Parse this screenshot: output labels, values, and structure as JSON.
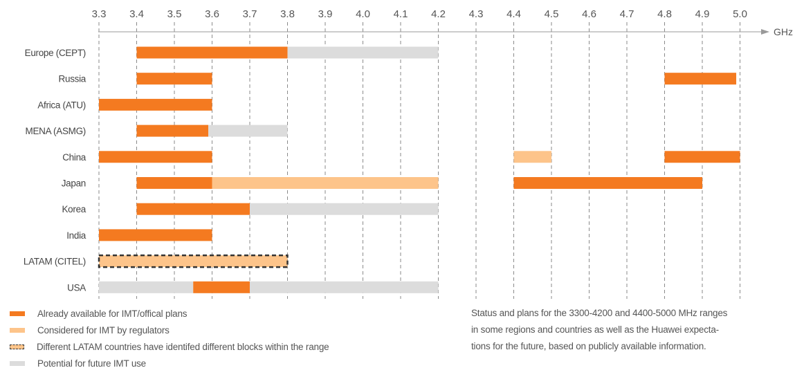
{
  "chart_data": {
    "type": "bar",
    "orientation": "horizontal-range",
    "x_unit": "GHz",
    "x_ticks": [
      "3.3",
      "3.4",
      "3.5",
      "3.6",
      "3.7",
      "3.8",
      "3.9",
      "4.0",
      "4.1",
      "4.2",
      "4.3",
      "4.4",
      "4.5",
      "4.6",
      "4.7",
      "4.8",
      "4.9",
      "5.0"
    ],
    "x_range": [
      3.3,
      5.0
    ],
    "grid": "vertical dashed at each tick",
    "categories": [
      "Europe (CEPT)",
      "Russia",
      "Africa (ATU)",
      "MENA (ASMG)",
      "China",
      "Japan",
      "Korea",
      "India",
      "LATAM (CITEL)",
      "USA"
    ],
    "status_colors": {
      "available": "#f47a20",
      "considered": "#fdc48a",
      "future": "#dcdcdc",
      "latam_outline": "#333333"
    },
    "bands": [
      {
        "region": "Europe (CEPT)",
        "status": "available",
        "from": 3.4,
        "to": 3.8
      },
      {
        "region": "Europe (CEPT)",
        "status": "future",
        "from": 3.8,
        "to": 4.2
      },
      {
        "region": "Russia",
        "status": "available",
        "from": 3.4,
        "to": 3.6
      },
      {
        "region": "Russia",
        "status": "available",
        "from": 4.8,
        "to": 4.99
      },
      {
        "region": "Africa (ATU)",
        "status": "available",
        "from": 3.3,
        "to": 3.6
      },
      {
        "region": "MENA (ASMG)",
        "status": "available",
        "from": 3.4,
        "to": 3.59
      },
      {
        "region": "MENA (ASMG)",
        "status": "future",
        "from": 3.59,
        "to": 3.8
      },
      {
        "region": "China",
        "status": "available",
        "from": 3.3,
        "to": 3.6
      },
      {
        "region": "China",
        "status": "considered",
        "from": 4.4,
        "to": 4.5
      },
      {
        "region": "China",
        "status": "available",
        "from": 4.8,
        "to": 5.0
      },
      {
        "region": "Japan",
        "status": "available",
        "from": 3.4,
        "to": 3.6
      },
      {
        "region": "Japan",
        "status": "considered",
        "from": 3.6,
        "to": 4.2
      },
      {
        "region": "Japan",
        "status": "available",
        "from": 4.4,
        "to": 4.9
      },
      {
        "region": "Korea",
        "status": "available",
        "from": 3.4,
        "to": 3.7
      },
      {
        "region": "Korea",
        "status": "future",
        "from": 3.7,
        "to": 4.2
      },
      {
        "region": "India",
        "status": "available",
        "from": 3.3,
        "to": 3.6
      },
      {
        "region": "LATAM (CITEL)",
        "status": "considered",
        "from": 3.3,
        "to": 3.8,
        "dashed_outline": true
      },
      {
        "region": "USA",
        "status": "future",
        "from": 3.3,
        "to": 3.55
      },
      {
        "region": "USA",
        "status": "available",
        "from": 3.55,
        "to": 3.7
      },
      {
        "region": "USA",
        "status": "future",
        "from": 3.7,
        "to": 4.2
      }
    ]
  },
  "legend": [
    {
      "label": "Already available for IMT/offical plans",
      "status": "available"
    },
    {
      "label": "Considered for IMT by regulators",
      "status": "considered"
    },
    {
      "label": "Different LATAM countries have identifed different blocks within the range",
      "status": "latam"
    },
    {
      "label": "Potential for future IMT use",
      "status": "future"
    }
  ],
  "note": {
    "lines": [
      "Status and plans for the 3300-4200 and 4400-5000 MHz ranges",
      "in some regions and countries as well as the Huawei expecta-",
      "tions for the future, based on publicly available information."
    ]
  }
}
